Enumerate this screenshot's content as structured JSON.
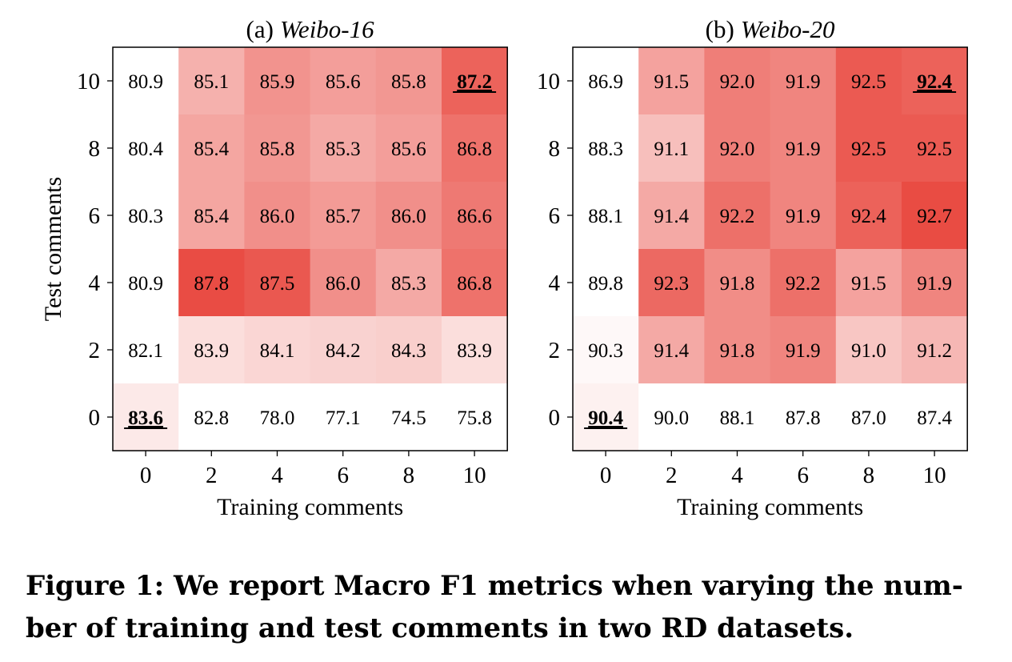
{
  "figure": {
    "caption": "Figure 1: We report Macro F1 metrics when varying the number of training and test comments in two RD datasets.",
    "caption_lines": [
      "Figure 1: We report Macro F1 metrics when varying the num-",
      "ber of training and test comments in two RD datasets."
    ]
  },
  "chart_data": [
    {
      "type": "heatmap",
      "title_prefix": "(a)",
      "title": "Weibo-16",
      "xlabel": "Training comments",
      "ylabel": "Test comments",
      "x": [
        "0",
        "2",
        "4",
        "6",
        "8",
        "10"
      ],
      "y": [
        "10",
        "8",
        "6",
        "4",
        "2",
        "0"
      ],
      "values": [
        [
          "80.9",
          "85.1",
          "85.9",
          "85.6",
          "85.8",
          "87.2"
        ],
        [
          "80.4",
          "85.4",
          "85.8",
          "85.3",
          "85.6",
          "86.8"
        ],
        [
          "80.3",
          "85.4",
          "86.0",
          "85.7",
          "86.0",
          "86.6"
        ],
        [
          "80.9",
          "87.8",
          "87.5",
          "86.0",
          "85.3",
          "86.8"
        ],
        [
          "82.1",
          "83.9",
          "84.1",
          "84.2",
          "84.3",
          "83.9"
        ],
        [
          "83.6",
          "82.8",
          "78.0",
          "77.1",
          "74.5",
          "75.8"
        ]
      ],
      "highlighted": [
        [
          0,
          5
        ],
        [
          5,
          0
        ]
      ],
      "color_min": 83.0,
      "color_max": 88.0,
      "color_low": "#ffffff",
      "color_high": "#e8453c"
    },
    {
      "type": "heatmap",
      "title_prefix": "(b)",
      "title": "Weibo-20",
      "xlabel": "Training comments",
      "ylabel": "",
      "x": [
        "0",
        "2",
        "4",
        "6",
        "8",
        "10"
      ],
      "y": [
        "10",
        "8",
        "6",
        "4",
        "2",
        "0"
      ],
      "values": [
        [
          "86.9",
          "91.5",
          "92.0",
          "91.9",
          "92.5",
          "92.4"
        ],
        [
          "88.3",
          "91.1",
          "92.0",
          "91.9",
          "92.5",
          "92.5"
        ],
        [
          "88.1",
          "91.4",
          "92.2",
          "91.9",
          "92.4",
          "92.7"
        ],
        [
          "89.8",
          "92.3",
          "91.8",
          "92.2",
          "91.5",
          "91.9"
        ],
        [
          "90.3",
          "91.4",
          "91.8",
          "91.9",
          "91.0",
          "91.2"
        ],
        [
          "90.4",
          "90.0",
          "88.1",
          "87.8",
          "87.0",
          "87.4"
        ]
      ],
      "highlighted": [
        [
          0,
          5
        ],
        [
          5,
          0
        ]
      ],
      "color_min": 90.2,
      "color_max": 92.8,
      "color_low": "#ffffff",
      "color_high": "#e8453c"
    }
  ]
}
